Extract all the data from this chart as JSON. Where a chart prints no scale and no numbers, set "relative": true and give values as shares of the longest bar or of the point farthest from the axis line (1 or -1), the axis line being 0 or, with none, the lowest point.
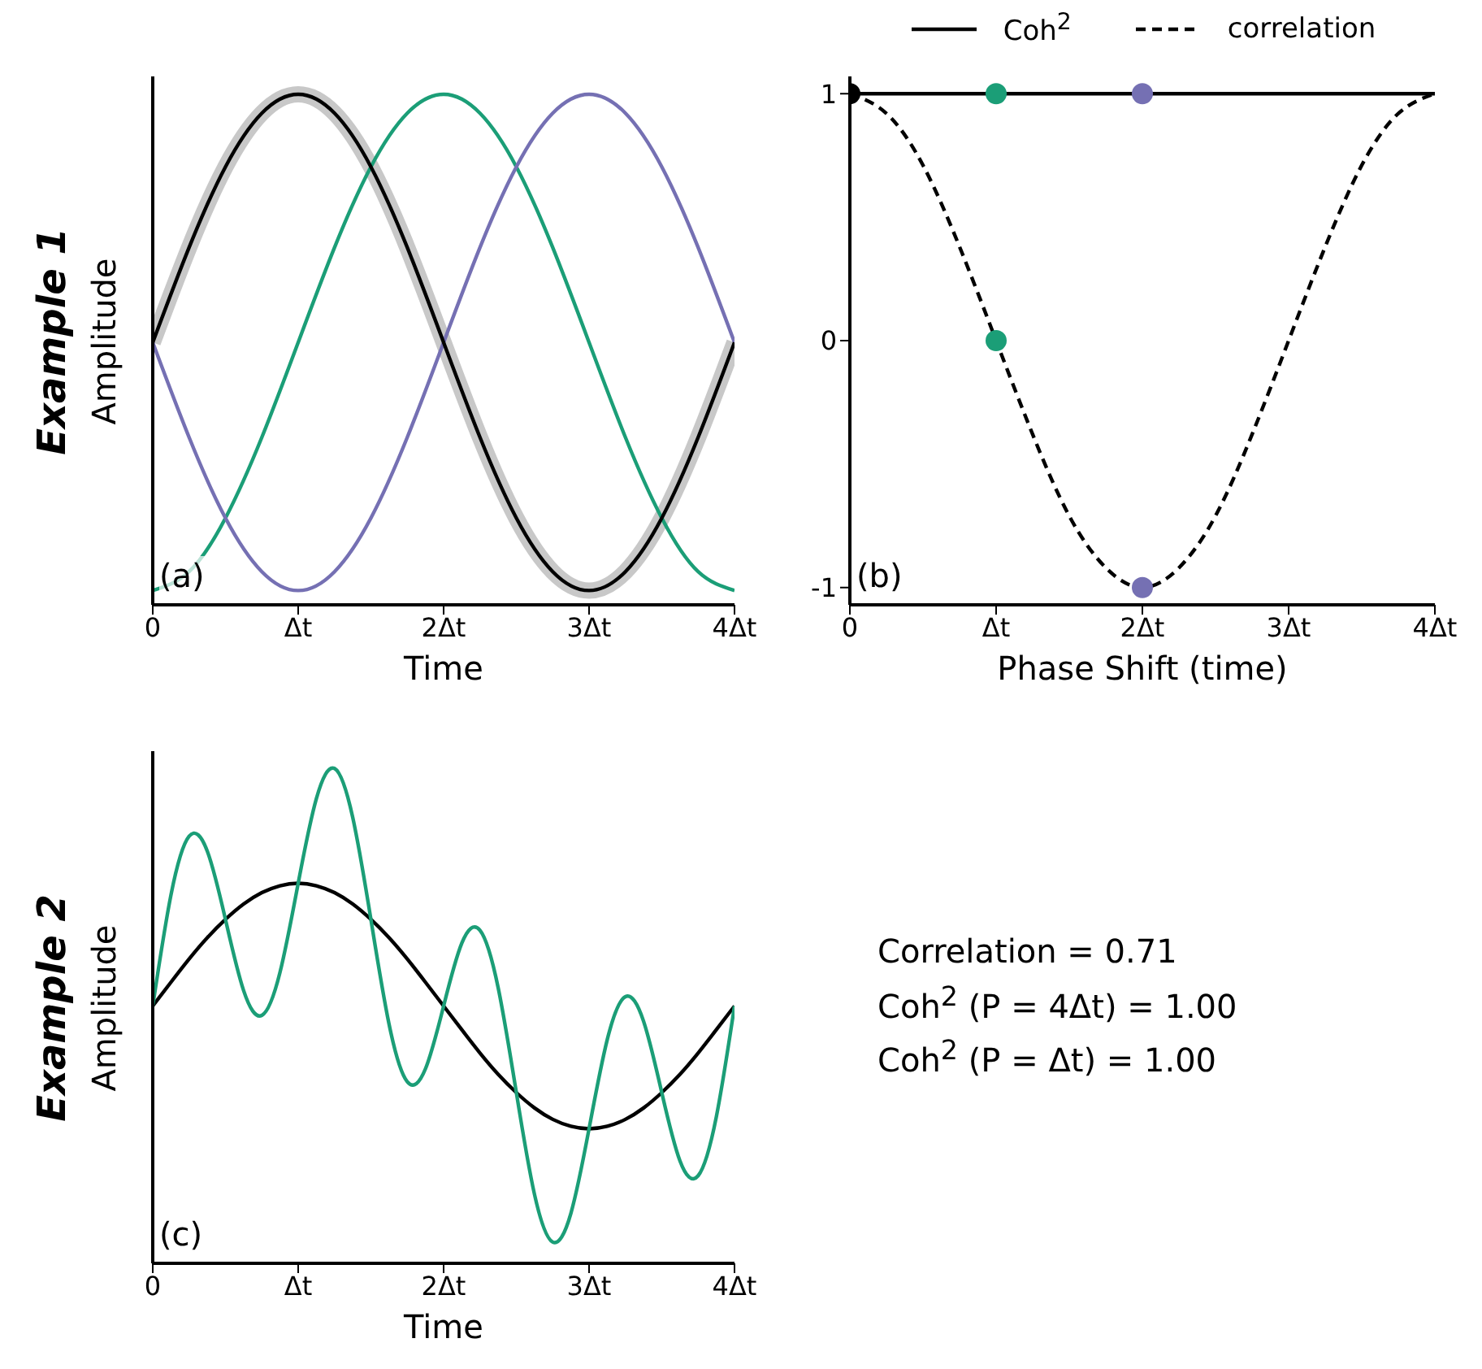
{
  "chart_data": [
    {
      "type": "line",
      "xlabel": "Time",
      "ylabel": "Amplitude",
      "relative": true,
      "xlim": [
        0,
        4
      ],
      "xticks": [
        {
          "value": 0,
          "label": "0"
        },
        {
          "value": 1,
          "label": "Δt"
        },
        {
          "value": 2,
          "label": "2Δt"
        },
        {
          "value": 3,
          "label": "3Δt"
        },
        {
          "value": 4,
          "label": "4Δt"
        }
      ],
      "tick_labels": "x",
      "annotations": [
        "(a)",
        "Example 1"
      ],
      "x": [
        0,
        0.25,
        0.5,
        0.75,
        1,
        1.25,
        1.5,
        1.75,
        2,
        2.25,
        2.5,
        2.75,
        3,
        3.25,
        3.5,
        3.75,
        4
      ],
      "series": [
        {
          "color": "#c8c8c8",
          "values": [
            0.514,
            0.7,
            0.858,
            0.963,
            1,
            0.963,
            0.858,
            0.7,
            0.514,
            0.328,
            0.17,
            0.065,
            0.028,
            0.065,
            0.17,
            0.328,
            0.514
          ]
        },
        {
          "color": "#1b9e77",
          "values": [
            0.028,
            0.065,
            0.17,
            0.328,
            0.514,
            0.7,
            0.858,
            0.963,
            1,
            0.963,
            0.858,
            0.7,
            0.514,
            0.328,
            0.17,
            0.065,
            0.028
          ]
        },
        {
          "color": "#7570b3",
          "values": [
            0.514,
            0.328,
            0.17,
            0.065,
            0.028,
            0.065,
            0.17,
            0.328,
            0.514,
            0.7,
            0.858,
            0.963,
            1,
            0.963,
            0.858,
            0.7,
            0.514
          ]
        },
        {
          "color": "#000000",
          "values": [
            0.514,
            0.7,
            0.858,
            0.963,
            1,
            0.963,
            0.858,
            0.7,
            0.514,
            0.328,
            0.17,
            0.065,
            0.028,
            0.065,
            0.17,
            0.328,
            0.514
          ]
        }
      ]
    },
    {
      "type": "line",
      "xlabel": "Phase Shift (time)",
      "legend": "top",
      "xlim": [
        0,
        4
      ],
      "ylim": [
        -1.07,
        1.07
      ],
      "xticks": [
        {
          "value": 0,
          "label": "0"
        },
        {
          "value": 1,
          "label": "Δt"
        },
        {
          "value": 2,
          "label": "2Δt"
        },
        {
          "value": 3,
          "label": "3Δt"
        },
        {
          "value": 4,
          "label": "4Δt"
        }
      ],
      "yticks": [
        -1,
        0,
        1
      ],
      "annotations": [
        "(b)"
      ],
      "series": [
        {
          "name": "Coh$^{2}$",
          "color": "#000000",
          "line_style": "solid",
          "x": [
            0,
            4
          ],
          "values": [
            1,
            1
          ]
        },
        {
          "name": "correlation",
          "color": "#000000",
          "line_style": "dashed",
          "x": [
            0,
            0.25,
            0.5,
            0.75,
            1,
            1.25,
            1.5,
            1.75,
            2,
            2.25,
            2.5,
            2.75,
            3,
            3.25,
            3.5,
            3.75,
            4
          ],
          "values": [
            1,
            0.92,
            0.71,
            0.38,
            0,
            -0.38,
            -0.71,
            -0.92,
            -1,
            -0.92,
            -0.71,
            -0.38,
            0,
            0.38,
            0.71,
            0.92,
            1
          ]
        },
        {
          "type": "scatter",
          "marker": "circle",
          "color": "#000000",
          "x": [
            0
          ],
          "values": [
            1
          ]
        },
        {
          "type": "scatter",
          "marker": "circle",
          "color": "#1b9e77",
          "x": [
            1,
            1
          ],
          "values": [
            1,
            0
          ]
        },
        {
          "type": "scatter",
          "marker": "circle",
          "color": "#7570b3",
          "x": [
            2,
            2
          ],
          "values": [
            1,
            -1
          ]
        }
      ]
    },
    {
      "type": "line",
      "xlabel": "Time",
      "ylabel": "Amplitude",
      "relative": true,
      "xlim": [
        0,
        4
      ],
      "xticks": [
        {
          "value": 0,
          "label": "0"
        },
        {
          "value": 1,
          "label": "Δt"
        },
        {
          "value": 2,
          "label": "2Δt"
        },
        {
          "value": 3,
          "label": "3Δt"
        },
        {
          "value": 4,
          "label": "4Δt"
        }
      ],
      "tick_labels": "x",
      "annotations": [
        "(c)",
        "Example 2"
      ],
      "x": [
        0,
        0.125,
        0.25,
        0.375,
        0.5,
        0.625,
        0.75,
        0.875,
        1,
        1.125,
        1.25,
        1.375,
        1.5,
        1.625,
        1.75,
        1.875,
        2,
        2.125,
        2.25,
        2.375,
        2.5,
        2.625,
        2.75,
        2.875,
        3,
        3.125,
        3.25,
        3.375,
        3.5,
        3.625,
        3.75,
        3.875,
        4
      ],
      "series": [
        {
          "color": "#000000",
          "values": [
            0.52,
            0.568,
            0.615,
            0.658,
            0.695,
            0.726,
            0.749,
            0.763,
            0.768,
            0.763,
            0.749,
            0.726,
            0.695,
            0.658,
            0.615,
            0.568,
            0.52,
            0.472,
            0.425,
            0.382,
            0.345,
            0.314,
            0.291,
            0.277,
            0.272,
            0.277,
            0.291,
            0.314,
            0.345,
            0.382,
            0.425,
            0.472,
            0.52
          ]
        },
        {
          "color": "#1b9e77",
          "values": [
            0.52,
            0.744,
            0.863,
            0.833,
            0.695,
            0.551,
            0.501,
            0.588,
            0.768,
            0.939,
            1,
            0.901,
            0.695,
            0.483,
            0.367,
            0.393,
            0.52,
            0.647,
            0.673,
            0.557,
            0.345,
            0.139,
            0.043,
            0.101,
            0.272,
            0.452,
            0.539,
            0.489,
            0.345,
            0.207,
            0.177,
            0.296,
            0.52
          ]
        }
      ]
    },
    {
      "type": "other",
      "annotations": [
        "Correlation = 0.71",
        "Coh$^{2}$ (P = 4Δt) = 1.00",
        "Coh$^{2}$ (P = Δt) = 1.00"
      ]
    }
  ]
}
